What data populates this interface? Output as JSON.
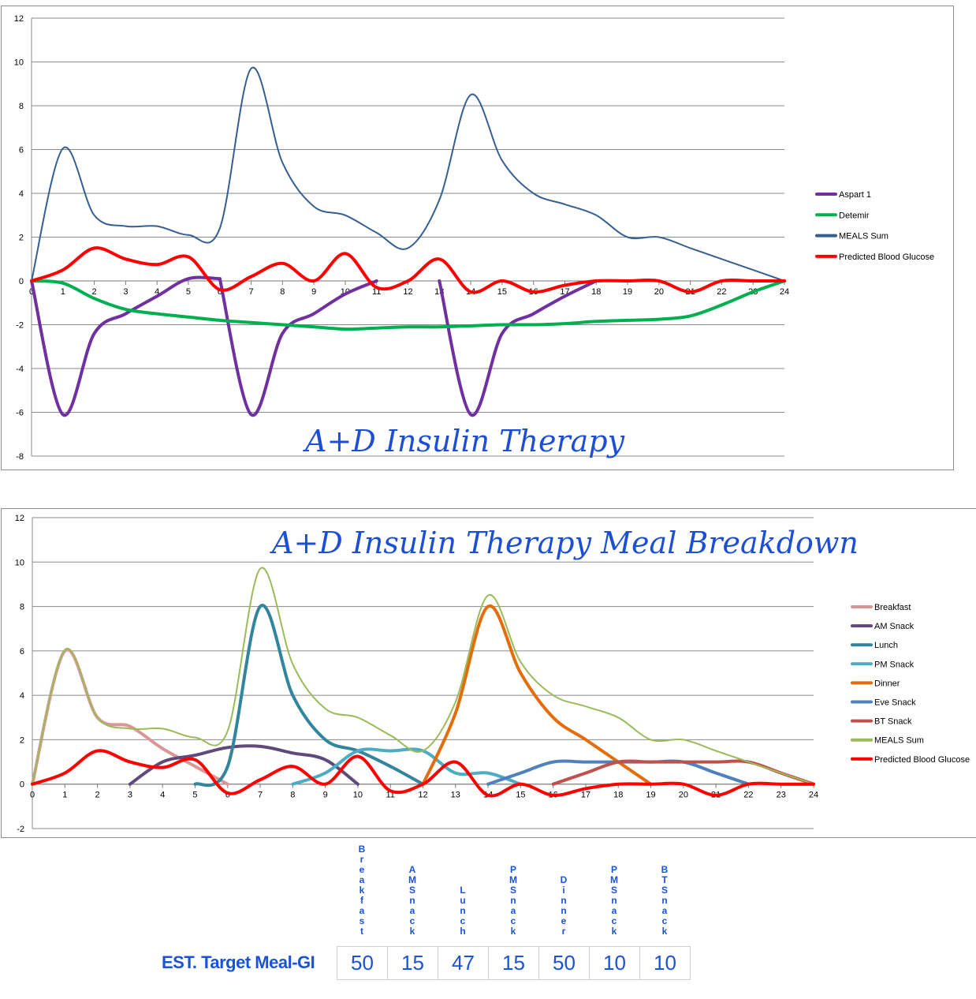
{
  "charts_ui": {
    "chart1_title": "A+D Insulin Therapy",
    "chart2_title": "A+D Insulin Therapy Meal Breakdown"
  },
  "chart_data": [
    {
      "type": "line",
      "title": "A+D Insulin Therapy",
      "xlabel": "",
      "ylabel": "",
      "xlim": [
        0,
        24
      ],
      "ylim": [
        -8,
        12
      ],
      "yticks": [
        -8,
        -6,
        -4,
        -2,
        0,
        2,
        4,
        6,
        8,
        10,
        12
      ],
      "xticks": [
        0,
        1,
        2,
        3,
        4,
        5,
        6,
        7,
        8,
        9,
        10,
        11,
        12,
        13,
        14,
        15,
        16,
        17,
        18,
        19,
        20,
        21,
        22,
        23,
        24
      ],
      "grid": "horizontal",
      "legend": "right",
      "series": [
        {
          "name": "Aspart 1",
          "color": "#7030a0",
          "width": 4,
          "segments": [
            {
              "x": [
                0,
                1,
                2,
                3,
                4,
                5,
                6
              ],
              "y": [
                0,
                -6.1,
                -2.4,
                -1.5,
                -0.7,
                0.1,
                0.1
              ]
            },
            {
              "x": [
                6,
                7,
                8,
                9,
                10,
                11
              ],
              "y": [
                0.1,
                -6.1,
                -2.4,
                -1.5,
                -0.6,
                0
              ]
            },
            {
              "x": [
                13,
                14,
                15,
                16,
                17,
                18
              ],
              "y": [
                0,
                -6.1,
                -2.4,
                -1.5,
                -0.7,
                0
              ]
            }
          ]
        },
        {
          "name": "Detemir",
          "color": "#00b050",
          "width": 4,
          "segments": [
            {
              "x": [
                0,
                1,
                2,
                3,
                4,
                5,
                6,
                7,
                8,
                9,
                10,
                11,
                12,
                13,
                14,
                15,
                16,
                17,
                18,
                19,
                20,
                21,
                22,
                23,
                24
              ],
              "y": [
                0,
                -0.1,
                -0.8,
                -1.3,
                -1.5,
                -1.65,
                -1.8,
                -1.9,
                -2.0,
                -2.1,
                -2.2,
                -2.15,
                -2.1,
                -2.1,
                -2.05,
                -2.0,
                -2.0,
                -1.95,
                -1.85,
                -1.8,
                -1.75,
                -1.6,
                -1.1,
                -0.5,
                0
              ]
            }
          ]
        },
        {
          "name": "MEALS Sum",
          "color": "#365f91",
          "width": 2,
          "segments": [
            {
              "x": [
                0,
                1,
                2,
                3,
                4,
                5,
                6,
                7,
                8,
                9,
                10,
                11,
                12,
                13,
                14,
                15,
                16,
                17,
                18,
                19,
                20,
                21,
                22,
                23,
                24
              ],
              "y": [
                0,
                6.05,
                3.0,
                2.5,
                2.5,
                2.1,
                2.4,
                9.7,
                5.4,
                3.4,
                3.0,
                2.2,
                1.5,
                3.7,
                8.5,
                5.5,
                4.0,
                3.5,
                3.0,
                2.0,
                2.0,
                1.5,
                1.0,
                0.5,
                0
              ]
            }
          ]
        },
        {
          "name": "Predicted Blood Glucose",
          "color": "#ff0000",
          "width": 4,
          "segments": [
            {
              "x": [
                0,
                1,
                2,
                3,
                4,
                5,
                6,
                7,
                8,
                9,
                10,
                11,
                12,
                13,
                14,
                15,
                16,
                17,
                18,
                19,
                20,
                21,
                22,
                23,
                24
              ],
              "y": [
                0,
                0.5,
                1.5,
                1.0,
                0.75,
                1.1,
                -0.4,
                0.2,
                0.8,
                0.0,
                1.25,
                -0.3,
                0.0,
                1.0,
                -0.5,
                0.0,
                -0.5,
                -0.2,
                0.0,
                0.0,
                0.0,
                -0.5,
                0.0,
                0.0,
                0.0
              ]
            }
          ]
        }
      ]
    },
    {
      "type": "line",
      "title": "A+D Insulin Therapy Meal Breakdown",
      "xlabel": "",
      "ylabel": "",
      "xlim": [
        0,
        24
      ],
      "ylim": [
        -2,
        12
      ],
      "yticks": [
        -2,
        0,
        2,
        4,
        6,
        8,
        10,
        12
      ],
      "xticks": [
        0,
        1,
        2,
        3,
        4,
        5,
        6,
        7,
        8,
        9,
        10,
        11,
        12,
        13,
        14,
        15,
        16,
        17,
        18,
        19,
        20,
        21,
        22,
        23,
        24
      ],
      "grid": "horizontal",
      "legend": "right",
      "series": [
        {
          "name": "Breakfast",
          "color": "#d99694",
          "width": 4,
          "segments": [
            {
              "x": [
                0,
                1,
                2,
                3,
                4,
                5,
                6
              ],
              "y": [
                0,
                6.0,
                3.0,
                2.6,
                1.6,
                0.8,
                0
              ]
            }
          ]
        },
        {
          "name": "AM Snack",
          "color": "#604a7b",
          "width": 4,
          "segments": [
            {
              "x": [
                3,
                4,
                5,
                6,
                7,
                8,
                9,
                10
              ],
              "y": [
                0,
                1.0,
                1.3,
                1.65,
                1.7,
                1.4,
                1.1,
                0
              ]
            }
          ]
        },
        {
          "name": "Lunch",
          "color": "#31859c",
          "width": 4,
          "segments": [
            {
              "x": [
                5,
                6,
                7,
                8,
                9,
                10,
                11,
                12
              ],
              "y": [
                0,
                0.8,
                8.0,
                4.0,
                2.0,
                1.5,
                0.8,
                0
              ]
            }
          ]
        },
        {
          "name": "PM Snack",
          "color": "#4bacc6",
          "width": 4,
          "segments": [
            {
              "x": [
                8,
                9,
                10,
                11,
                12,
                13,
                14,
                15
              ],
              "y": [
                0,
                0.5,
                1.5,
                1.5,
                1.5,
                0.5,
                0.5,
                0
              ]
            }
          ]
        },
        {
          "name": "Dinner",
          "color": "#e46c0a",
          "width": 4,
          "segments": [
            {
              "x": [
                12,
                13,
                14,
                15,
                16,
                17,
                18,
                19
              ],
              "y": [
                0,
                3.2,
                8.0,
                5.0,
                3.0,
                2.0,
                1.0,
                0
              ]
            }
          ]
        },
        {
          "name": "Eve Snack",
          "color": "#4f81bd",
          "width": 4,
          "segments": [
            {
              "x": [
                14,
                15,
                16,
                17,
                18,
                19,
                20,
                21,
                22
              ],
              "y": [
                0,
                0.5,
                1.0,
                1.0,
                1.0,
                1.0,
                1.0,
                0.5,
                0
              ]
            }
          ]
        },
        {
          "name": "BT Snack",
          "color": "#c0504d",
          "width": 4,
          "segments": [
            {
              "x": [
                16,
                17,
                18,
                19,
                20,
                21,
                22,
                23,
                24
              ],
              "y": [
                0,
                0.5,
                1.0,
                1.0,
                1.0,
                1.0,
                1.0,
                0.5,
                0
              ]
            }
          ]
        },
        {
          "name": "MEALS Sum",
          "color": "#9bbb59",
          "width": 2,
          "segments": [
            {
              "x": [
                0,
                1,
                2,
                3,
                4,
                5,
                6,
                7,
                8,
                9,
                10,
                11,
                12,
                13,
                14,
                15,
                16,
                17,
                18,
                19,
                20,
                21,
                22,
                23,
                24
              ],
              "y": [
                0,
                6.05,
                3.0,
                2.5,
                2.5,
                2.1,
                2.4,
                9.7,
                5.4,
                3.4,
                3.0,
                2.2,
                1.5,
                3.7,
                8.5,
                5.5,
                4.0,
                3.5,
                3.0,
                2.0,
                2.0,
                1.5,
                1.0,
                0.5,
                0
              ]
            }
          ]
        },
        {
          "name": "Predicted Blood Glucose",
          "color": "#ff0000",
          "width": 4,
          "segments": [
            {
              "x": [
                0,
                1,
                2,
                3,
                4,
                5,
                6,
                7,
                8,
                9,
                10,
                11,
                12,
                13,
                14,
                15,
                16,
                17,
                18,
                19,
                20,
                21,
                22,
                23,
                24
              ],
              "y": [
                0,
                0.5,
                1.5,
                1.0,
                0.75,
                1.1,
                -0.4,
                0.2,
                0.8,
                0.0,
                1.25,
                -0.3,
                0.0,
                1.0,
                -0.5,
                0.0,
                -0.5,
                -0.2,
                0.0,
                0.0,
                0.0,
                -0.5,
                0.0,
                0.0,
                0.0
              ]
            }
          ]
        }
      ]
    }
  ],
  "gi_table": {
    "label": "EST. Target Meal-GI",
    "headers": [
      "Breakfast",
      "AM Snack",
      "Lunch",
      "PM Snack",
      "Dinner",
      "PM Snack",
      "BT Snack"
    ],
    "values": [
      "50",
      "15",
      "47",
      "15",
      "50",
      "10",
      "10"
    ]
  }
}
